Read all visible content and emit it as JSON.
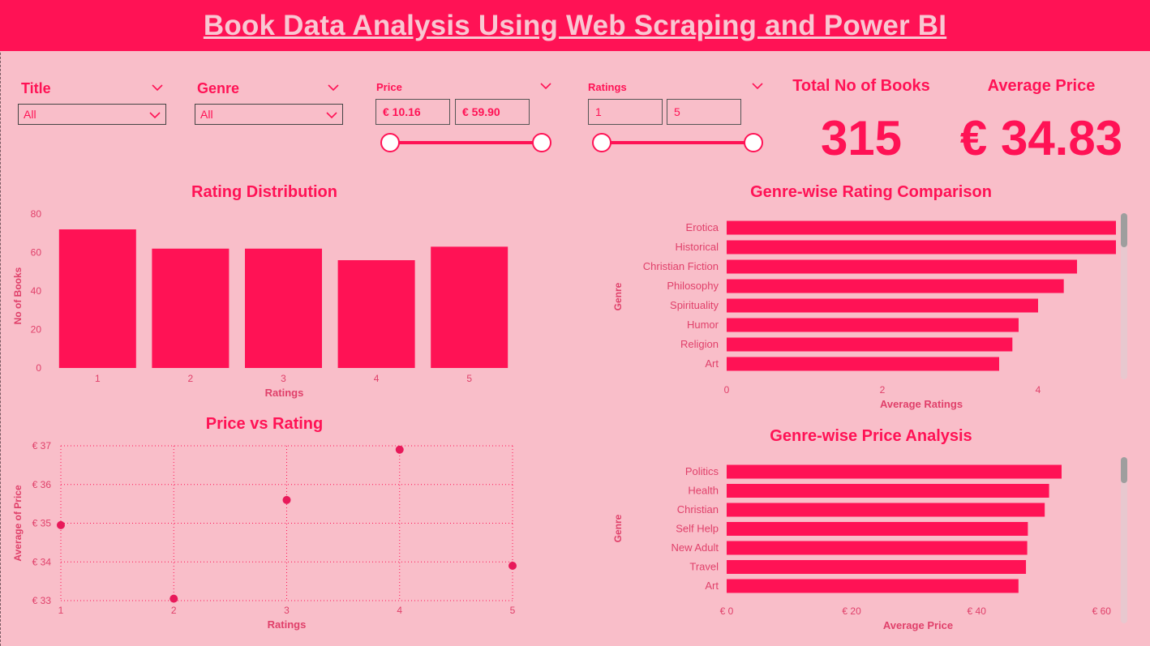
{
  "header": {
    "title": "Book Data Analysis Using Web Scraping and Power BI"
  },
  "colors": {
    "accent": "#ff1255",
    "background": "#f9bec9",
    "header_text": "#f9c7d2",
    "axis_text": "#e0406a"
  },
  "filters": {
    "title": {
      "label": "Title",
      "value": "All"
    },
    "genre": {
      "label": "Genre",
      "value": "All"
    },
    "price": {
      "label": "Price",
      "min": "€ 10.16",
      "max": "€ 59.90"
    },
    "ratings": {
      "label": "Ratings",
      "min": "1",
      "max": "5"
    }
  },
  "kpis": {
    "total_books": {
      "label": "Total No of Books",
      "value": "315"
    },
    "average_price": {
      "label": "Average Price",
      "value": "€ 34.83"
    }
  },
  "icons": {
    "dropdown": "chevron-down-icon"
  },
  "chart_data": [
    {
      "id": "rating_distribution",
      "type": "bar",
      "title": "Rating Distribution",
      "xlabel": "Ratings",
      "ylabel": "No of Books",
      "categories": [
        "1",
        "2",
        "3",
        "4",
        "5"
      ],
      "values": [
        72,
        62,
        62,
        56,
        63
      ],
      "ylim": [
        0,
        80
      ],
      "yticks": [
        "0",
        "20",
        "40",
        "60",
        "80"
      ],
      "grid": false
    },
    {
      "id": "genre_rating",
      "type": "bar",
      "orientation": "horizontal",
      "title": "Genre-wise Rating Comparison",
      "xlabel": "Average Ratings",
      "ylabel": "Genre",
      "categories": [
        "Erotica",
        "Historical",
        "Christian Fiction",
        "Philosophy",
        "Spirituality",
        "Humor",
        "Religion",
        "Art"
      ],
      "values": [
        5.0,
        5.0,
        4.5,
        4.33,
        4.0,
        3.75,
        3.67,
        3.5
      ],
      "xlim": [
        0,
        5
      ],
      "xticks": [
        "0",
        "2",
        "4"
      ],
      "grid": false
    },
    {
      "id": "price_vs_rating",
      "type": "scatter",
      "title": "Price vs Rating",
      "xlabel": "Ratings",
      "ylabel": "Average of Price",
      "x": [
        1,
        2,
        3,
        4,
        5
      ],
      "y": [
        34.95,
        33.05,
        35.6,
        36.9,
        33.9
      ],
      "xlim": [
        1,
        5
      ],
      "ylim": [
        33,
        37
      ],
      "xticks": [
        "1",
        "2",
        "3",
        "4",
        "5"
      ],
      "yticks": [
        "€ 33",
        "€ 34",
        "€ 35",
        "€ 36",
        "€ 37"
      ],
      "grid": true
    },
    {
      "id": "genre_price",
      "type": "bar",
      "orientation": "horizontal",
      "title": "Genre-wise Price Analysis",
      "xlabel": "Average Price",
      "ylabel": "Genre",
      "categories": [
        "Politics",
        "Health",
        "Christian",
        "Self Help",
        "New Adult",
        "Travel",
        "Art"
      ],
      "values": [
        53.6,
        51.6,
        50.9,
        48.2,
        48.1,
        47.9,
        46.7
      ],
      "xlim": [
        0,
        61
      ],
      "xticks": [
        "€ 0",
        "€ 20",
        "€ 40",
        "€ 60"
      ],
      "xtick_values": [
        0,
        20,
        40,
        60
      ],
      "grid": false
    }
  ]
}
